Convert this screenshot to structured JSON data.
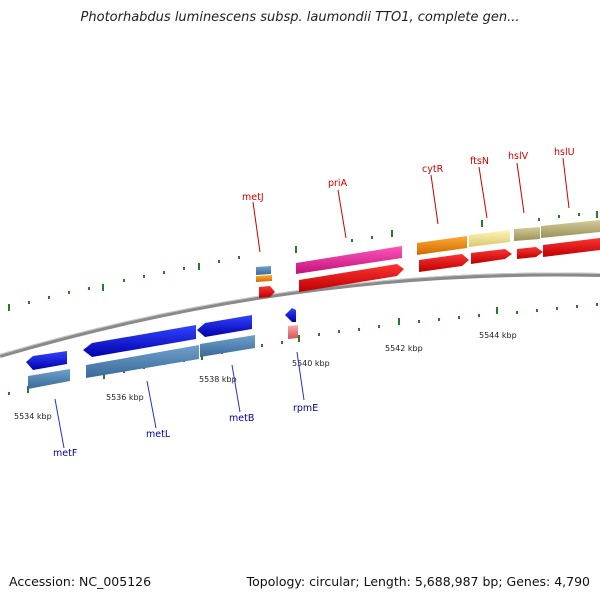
{
  "title": "Photorhabdus luminescens subsp. laumondii TTO1, complete gen...",
  "footer": {
    "accession": "Accession: NC_005126",
    "summary": "Topology: circular; Length: 5,688,987 bp; Genes: 4,790"
  },
  "colors": {
    "backbone": "#8a8a8a",
    "forward_label": "#cc0000",
    "reverse_label": "#000099",
    "tick": "#2a7a2a",
    "leader": "#2233cc"
  },
  "scale_labels": [
    "5534 kbp",
    "5536 kbp",
    "5538 kbp",
    "5540 kbp",
    "5542 kbp",
    "5544 kbp"
  ],
  "forward_genes": [
    {
      "label": "metJ"
    },
    {
      "label": "priA"
    },
    {
      "label": "cytR"
    },
    {
      "label": "ftsN"
    },
    {
      "label": "hslV"
    },
    {
      "label": "hslU"
    }
  ],
  "reverse_genes": [
    {
      "label": "metF"
    },
    {
      "label": "metL"
    },
    {
      "label": "metB"
    },
    {
      "label": "rpmE"
    }
  ]
}
